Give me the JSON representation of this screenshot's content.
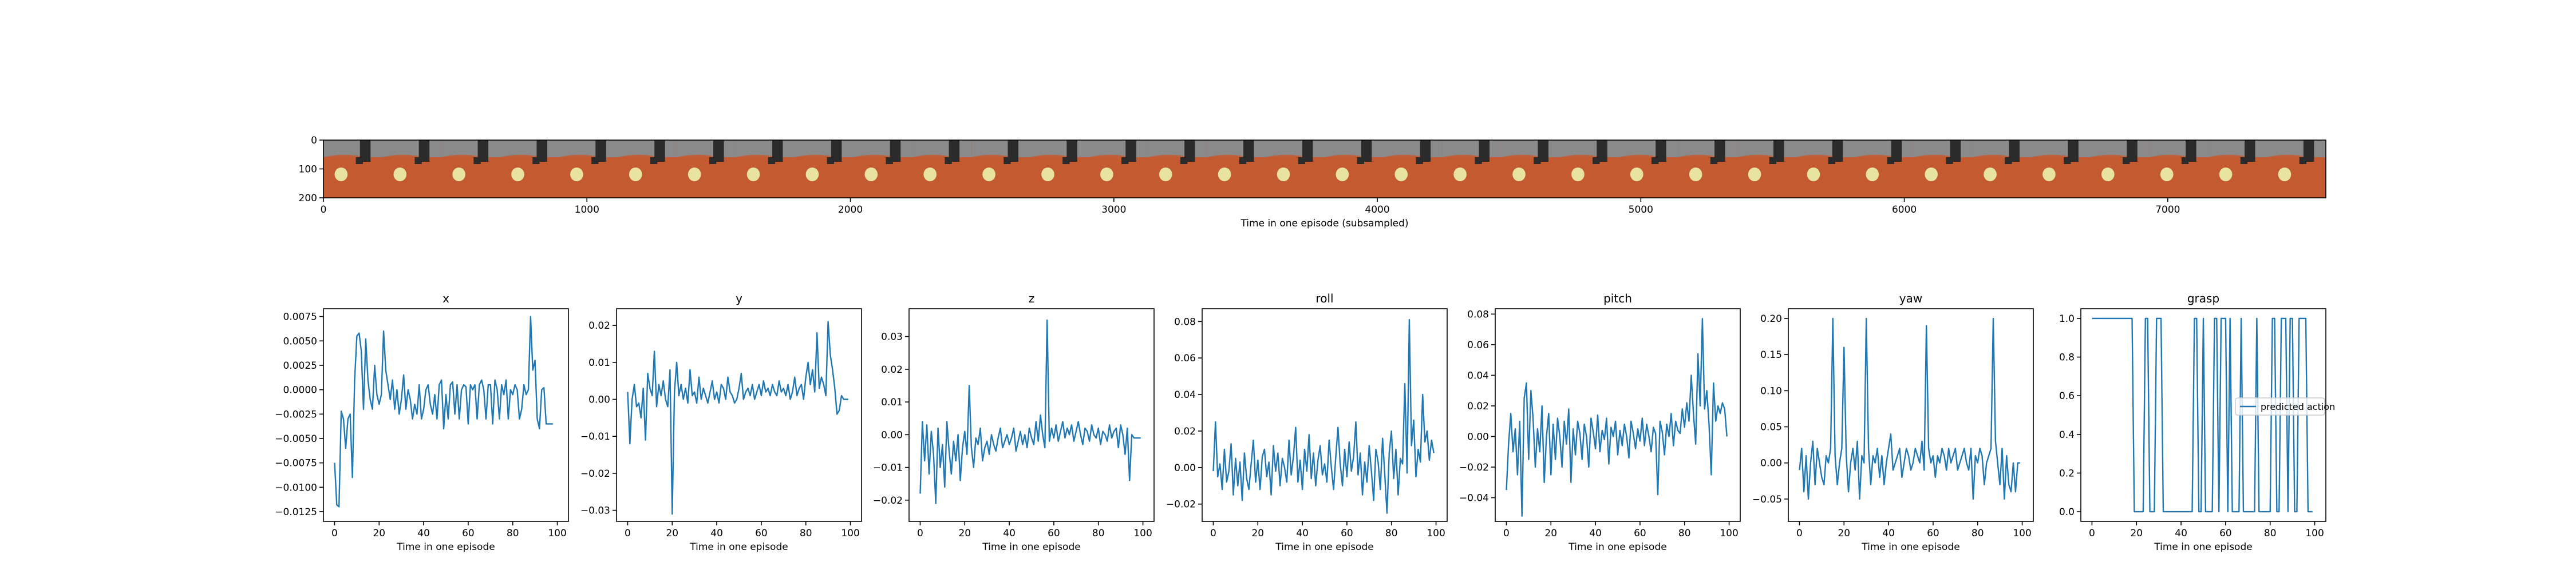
{
  "strip": {
    "xlabel": "Time in one episode (subsampled)",
    "xticks": [
      0,
      1000,
      2000,
      3000,
      4000,
      5000,
      6000,
      7000
    ],
    "yticks": [
      0,
      100,
      200
    ],
    "xlim": [
      0,
      7600
    ],
    "ylim": [
      0,
      200
    ],
    "frame_count": 34,
    "colors": {
      "table": "#c45a30",
      "gripper": "#2b2b2b",
      "object": "#e8e3a0",
      "background": "#8a8a8a"
    }
  },
  "chart_data": [
    {
      "type": "line",
      "title": "x",
      "xlabel": "Time in one episode",
      "xlim": [
        -5,
        105
      ],
      "ylim": [
        -0.0135,
        0.0083
      ],
      "xticks": [
        0,
        20,
        40,
        60,
        80,
        100
      ],
      "yticks": [
        -0.0125,
        -0.01,
        -0.0075,
        -0.005,
        -0.0025,
        0.0,
        0.0025,
        0.005,
        0.0075
      ],
      "ytick_labels": [
        "−0.0125",
        "−0.0100",
        "−0.0075",
        "−0.0050",
        "−0.0025",
        "0.0000",
        "0.0025",
        "0.0050",
        "0.0075"
      ],
      "values": [
        -0.0075,
        -0.0118,
        -0.012,
        -0.0022,
        -0.003,
        -0.006,
        -0.003,
        -0.0025,
        -0.009,
        0.001,
        0.0055,
        0.0058,
        0.004,
        -0.002,
        0.0052,
        0.001,
        -0.001,
        -0.002,
        0.0025,
        -0.0005,
        -0.0015,
        -0.0005,
        0.006,
        0.002,
        0.0005,
        -0.001,
        0.001,
        -0.002,
        0.0,
        -0.0025,
        -0.001,
        0.0015,
        -0.002,
        0.0,
        -0.001,
        -0.003,
        -0.0015,
        -0.0025,
        0.0005,
        -0.003,
        -0.002,
        0.0,
        0.0005,
        -0.0015,
        -0.0025,
        -0.0005,
        -0.003,
        0.0005,
        0.001,
        -0.004,
        -0.0005,
        -0.003,
        0.0005,
        0.0008,
        -0.0025,
        0.0005,
        -0.003,
        0.0,
        0.0005,
        0.0003,
        -0.0035,
        0.0005,
        0.0,
        0.0005,
        -0.003,
        0.0005,
        0.001,
        0.0,
        -0.003,
        0.0005,
        0.0005,
        -0.0035,
        0.001,
        0.0,
        -0.003,
        0.0005,
        -0.0005,
        0.001,
        -0.003,
        0.0,
        -0.0005,
        0.0005,
        0.0,
        -0.003,
        -0.002,
        0.0005,
        -0.0005,
        0.0,
        0.0075,
        0.002,
        0.003,
        -0.003,
        -0.004,
        0.0,
        0.0002,
        -0.0035,
        -0.0035,
        -0.0035,
        -0.0035
      ]
    },
    {
      "type": "line",
      "title": "y",
      "xlabel": "Time in one episode",
      "xlim": [
        -5,
        105
      ],
      "ylim": [
        -0.033,
        0.0245
      ],
      "xticks": [
        0,
        20,
        40,
        60,
        80,
        100
      ],
      "yticks": [
        -0.03,
        -0.02,
        -0.01,
        0.0,
        0.01,
        0.02
      ],
      "ytick_labels": [
        "−0.03",
        "−0.02",
        "−0.01",
        "0.00",
        "0.01",
        "0.02"
      ],
      "values": [
        0.002,
        -0.012,
        0.0,
        0.004,
        -0.002,
        -0.001,
        -0.005,
        0.003,
        -0.011,
        0.007,
        0.003,
        0.001,
        0.013,
        -0.002,
        0.004,
        0.001,
        0.005,
        0.0,
        -0.002,
        0.008,
        -0.031,
        0.002,
        0.01,
        0.001,
        0.004,
        0.0,
        0.003,
        -0.001,
        0.008,
        0.001,
        0.002,
        -0.001,
        0.006,
        0.0,
        0.003,
        0.001,
        -0.001,
        0.002,
        0.005,
        0.0,
        0.002,
        -0.001,
        0.004,
        0.003,
        0.0,
        0.006,
        0.002,
        0.001,
        -0.001,
        0.0,
        0.003,
        0.007,
        0.0,
        0.002,
        0.003,
        0.001,
        0.004,
        0.0,
        0.002,
        0.004,
        0.001,
        0.005,
        0.002,
        0.003,
        0.001,
        0.004,
        0.002,
        0.001,
        0.005,
        0.002,
        0.003,
        0.001,
        0.004,
        0.0,
        0.002,
        0.006,
        0.001,
        0.003,
        0.004,
        0.0,
        0.006,
        0.01,
        0.004,
        0.008,
        0.002,
        0.018,
        0.003,
        0.006,
        0.004,
        0.001,
        0.021,
        0.012,
        0.008,
        0.003,
        -0.004,
        -0.003,
        0.001,
        0.0,
        0.0,
        0.0
      ]
    },
    {
      "type": "line",
      "title": "z",
      "xlabel": "Time in one episode",
      "xlim": [
        -5,
        105
      ],
      "ylim": [
        -0.0265,
        0.0385
      ],
      "xticks": [
        0,
        20,
        40,
        60,
        80,
        100
      ],
      "yticks": [
        -0.02,
        -0.01,
        0.0,
        0.01,
        0.02,
        0.03
      ],
      "ytick_labels": [
        "−0.02",
        "−0.01",
        "0.00",
        "0.01",
        "0.02",
        "0.03"
      ],
      "values": [
        -0.018,
        0.004,
        -0.008,
        0.003,
        -0.012,
        0.001,
        -0.006,
        -0.021,
        0.002,
        -0.01,
        -0.003,
        -0.016,
        0.004,
        -0.005,
        -0.012,
        -0.002,
        -0.008,
        0.0,
        -0.014,
        -0.004,
        0.001,
        -0.006,
        0.015,
        -0.004,
        -0.01,
        -0.001,
        -0.003,
        0.002,
        -0.008,
        -0.004,
        -0.002,
        -0.006,
        0.0,
        -0.003,
        -0.005,
        -0.001,
        0.002,
        -0.004,
        -0.002,
        0.0,
        -0.003,
        -0.001,
        0.002,
        -0.005,
        -0.002,
        0.001,
        -0.003,
        0.0,
        -0.004,
        0.002,
        -0.001,
        -0.003,
        0.004,
        -0.002,
        0.006,
        0.0,
        -0.004,
        0.035,
        -0.002,
        0.002,
        -0.001,
        0.003,
        -0.002,
        0.001,
        0.004,
        -0.001,
        0.002,
        0.0,
        0.003,
        -0.002,
        0.001,
        0.004,
        0.0,
        -0.003,
        0.002,
        0.001,
        -0.002,
        0.003,
        0.0,
        -0.001,
        0.002,
        -0.003,
        0.001,
        0.0,
        -0.002,
        0.003,
        -0.001,
        0.001,
        0.002,
        -0.004,
        0.003,
        0.0,
        -0.006,
        0.002,
        -0.014,
        0.0,
        -0.001,
        -0.001,
        -0.001,
        -0.001
      ]
    },
    {
      "type": "line",
      "title": "roll",
      "xlabel": "Time in one episode",
      "xlim": [
        -5,
        105
      ],
      "ylim": [
        -0.0295,
        0.087
      ],
      "xticks": [
        0,
        20,
        40,
        60,
        80,
        100
      ],
      "yticks": [
        -0.02,
        0.0,
        0.02,
        0.04,
        0.06,
        0.08
      ],
      "ytick_labels": [
        "−0.02",
        "0.00",
        "0.02",
        "0.04",
        "0.06",
        "0.08"
      ],
      "values": [
        -0.002,
        0.025,
        -0.005,
        0.002,
        -0.012,
        0.01,
        -0.008,
        -0.002,
        0.013,
        -0.015,
        0.005,
        -0.01,
        0.003,
        -0.018,
        0.008,
        -0.006,
        -0.012,
        0.002,
        0.015,
        -0.008,
        0.004,
        -0.012,
        0.006,
        0.01,
        -0.005,
        0.003,
        -0.015,
        0.012,
        -0.002,
        0.008,
        -0.01,
        0.005,
        0.0,
        -0.008,
        0.015,
        -0.004,
        0.006,
        0.022,
        -0.008,
        0.004,
        -0.012,
        0.01,
        -0.002,
        0.018,
        -0.006,
        0.008,
        -0.01,
        0.004,
        0.012,
        -0.004,
        0.002,
        -0.008,
        0.015,
        0.0,
        -0.012,
        0.006,
        0.022,
        0.002,
        -0.01,
        0.01,
        -0.005,
        0.014,
        -0.002,
        0.006,
        0.025,
        -0.004,
        0.008,
        -0.015,
        0.003,
        -0.008,
        0.012,
        -0.002,
        -0.018,
        0.01,
        0.003,
        -0.012,
        0.016,
        -0.004,
        -0.025,
        0.008,
        0.02,
        -0.006,
        0.01,
        -0.015,
        0.005,
        0.002,
        0.046,
        -0.003,
        0.081,
        0.012,
        0.026,
        -0.005,
        0.01,
        0.003,
        0.04,
        0.014,
        0.02,
        0.004,
        0.015,
        0.008
      ]
    },
    {
      "type": "line",
      "title": "pitch",
      "xlabel": "Time in one episode",
      "xlim": [
        -5,
        105
      ],
      "ylim": [
        -0.0555,
        0.0835
      ],
      "xticks": [
        0,
        20,
        40,
        60,
        80,
        100
      ],
      "yticks": [
        -0.04,
        -0.02,
        0.0,
        0.02,
        0.04,
        0.06,
        0.08
      ],
      "ytick_labels": [
        "−0.04",
        "−0.02",
        "0.00",
        "0.02",
        "0.04",
        "0.06",
        "0.08"
      ],
      "values": [
        -0.035,
        -0.005,
        0.015,
        -0.01,
        0.005,
        -0.025,
        0.01,
        -0.052,
        0.025,
        0.035,
        -0.015,
        0.03,
        0.012,
        -0.02,
        0.005,
        -0.01,
        0.02,
        -0.03,
        0.0,
        0.015,
        -0.025,
        0.008,
        -0.015,
        0.012,
        0.0,
        -0.02,
        0.01,
        -0.005,
        0.018,
        -0.03,
        0.005,
        -0.012,
        0.01,
        0.002,
        -0.015,
        0.008,
        0.0,
        -0.02,
        0.012,
        0.003,
        -0.008,
        0.014,
        -0.01,
        0.004,
        -0.002,
        0.012,
        -0.018,
        0.006,
        0.0,
        0.01,
        -0.012,
        0.004,
        -0.006,
        0.008,
        0.0,
        -0.014,
        0.01,
        0.002,
        -0.008,
        0.005,
        -0.003,
        0.012,
        -0.006,
        0.008,
        0.0,
        -0.01,
        0.006,
        0.002,
        -0.038,
        0.01,
        0.003,
        -0.012,
        0.008,
        0.0,
        0.015,
        -0.006,
        0.01,
        0.004,
        0.002,
        0.018,
        0.006,
        0.022,
        0.01,
        0.04,
        0.015,
        -0.005,
        0.054,
        0.02,
        0.077,
        0.018,
        0.03,
        0.008,
        -0.025,
        0.035,
        0.01,
        0.02,
        0.015,
        0.022,
        0.018,
        0.0
      ]
    },
    {
      "type": "line",
      "title": "yaw",
      "xlabel": "Time in one episode",
      "xlim": [
        -5,
        105
      ],
      "ylim": [
        -0.081,
        0.2135
      ],
      "xticks": [
        0,
        20,
        40,
        60,
        80,
        100
      ],
      "yticks": [
        -0.05,
        0.0,
        0.05,
        0.1,
        0.15,
        0.2
      ],
      "ytick_labels": [
        "−0.05",
        "0.00",
        "0.05",
        "0.10",
        "0.15",
        "0.20"
      ],
      "values": [
        -0.01,
        0.02,
        -0.04,
        0.01,
        -0.05,
        0.0,
        0.03,
        -0.03,
        0.02,
        0.0,
        -0.02,
        -0.03,
        0.01,
        0.0,
        0.02,
        0.2,
        0.01,
        -0.03,
        0.0,
        0.02,
        0.16,
        0.01,
        -0.04,
        0.0,
        0.02,
        -0.01,
        0.03,
        -0.05,
        0.01,
        0.0,
        0.2,
        0.02,
        -0.03,
        0.01,
        0.0,
        0.02,
        -0.02,
        0.01,
        -0.03,
        0.0,
        0.02,
        0.04,
        -0.01,
        0.0,
        0.01,
        0.02,
        -0.02,
        0.0,
        0.02,
        0.01,
        -0.01,
        0.0,
        0.02,
        0.01,
        0.0,
        0.03,
        -0.01,
        0.19,
        0.02,
        0.0,
        0.01,
        -0.02,
        0.01,
        0.0,
        0.02,
        0.01,
        -0.01,
        0.02,
        0.0,
        0.01,
        0.02,
        -0.01,
        0.0,
        0.01,
        0.02,
        0.0,
        -0.01,
        0.02,
        -0.05,
        0.01,
        0.0,
        0.02,
        0.01,
        -0.03,
        0.0,
        0.01,
        0.02,
        0.2,
        0.03,
        0.0,
        -0.03,
        0.02,
        -0.05,
        0.01,
        -0.03,
        -0.04,
        0.0,
        -0.04,
        0.0,
        0.0
      ]
    },
    {
      "type": "line",
      "title": "grasp",
      "xlabel": "Time in one episode",
      "xlim": [
        -5,
        105
      ],
      "ylim": [
        -0.05,
        1.05
      ],
      "xticks": [
        0,
        20,
        40,
        60,
        80,
        100
      ],
      "yticks": [
        0.0,
        0.2,
        0.4,
        0.6,
        0.8,
        1.0
      ],
      "ytick_labels": [
        "0.0",
        "0.2",
        "0.4",
        "0.6",
        "0.8",
        "1.0"
      ],
      "legend": {
        "label": "predicted action",
        "position": "center-right"
      },
      "values": [
        1,
        1,
        1,
        1,
        1,
        1,
        1,
        1,
        1,
        1,
        1,
        1,
        1,
        1,
        1,
        1,
        1,
        1,
        1,
        0,
        0,
        0,
        0,
        0,
        1,
        1,
        0,
        0,
        0,
        1,
        1,
        1,
        0,
        0,
        0,
        0,
        0,
        0,
        0,
        0,
        0,
        0,
        0,
        0,
        0,
        0,
        1,
        1,
        0,
        0,
        1,
        0,
        0,
        0,
        0,
        1,
        1,
        0,
        1,
        1,
        1,
        0,
        1,
        0,
        0,
        0,
        0,
        1,
        0,
        0,
        0,
        0,
        0,
        0,
        1,
        0,
        0,
        0,
        0,
        0,
        0,
        1,
        1,
        0,
        0,
        1,
        1,
        1,
        0,
        1,
        1,
        0,
        0,
        1,
        1,
        1,
        1,
        0,
        0,
        0
      ]
    }
  ]
}
